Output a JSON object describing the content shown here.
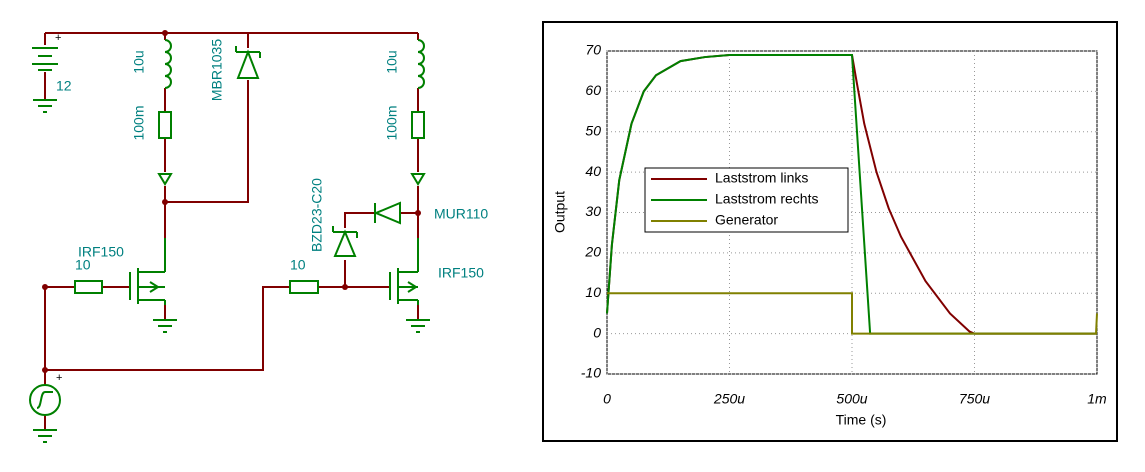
{
  "schematic": {
    "battery_plus": "+",
    "battery": "12",
    "l1": "10u",
    "r1": "100m",
    "d1": "MBR1035",
    "l2": "10u",
    "r2": "100m",
    "z1": "BZD23-C20",
    "d2": "MUR110",
    "m1": "IRF150",
    "m2": "IRF150",
    "rg1": "10",
    "rg2": "10",
    "gen_plus": "+"
  },
  "chart_data": {
    "type": "line",
    "xlabel": "Time (s)",
    "ylabel": "Output",
    "xlim": [
      0,
      0.001
    ],
    "xticks": [
      0,
      {
        "value": 0.00025,
        "label": "250u"
      },
      {
        "value": 0.0005,
        "label": "500u"
      },
      {
        "value": 0.00075,
        "label": "750u"
      },
      {
        "value": 0.001,
        "label": "1m"
      }
    ],
    "ylim": [
      -10,
      70
    ],
    "yticks": [
      -10,
      0,
      10,
      20,
      30,
      40,
      50,
      60,
      70
    ],
    "grid": true,
    "legend": "left",
    "series": [
      {
        "name": "Laststrom links",
        "color": "#800000",
        "x": [
          0,
          1e-05,
          2.5e-05,
          5e-05,
          7.5e-05,
          0.0001,
          0.00015,
          0.0002,
          0.00025,
          0.0005,
          0.00051,
          0.000525,
          0.00055,
          0.000575,
          0.0006,
          0.00065,
          0.0007,
          0.00074,
          0.00075,
          0.001
        ],
        "values": [
          5,
          22,
          38,
          52,
          60,
          64,
          67.5,
          68.5,
          69,
          69,
          62,
          52,
          40,
          31,
          24,
          13,
          5,
          0.5,
          0,
          0
        ]
      },
      {
        "name": "Laststrom rechts",
        "color": "#008000",
        "x": [
          0,
          1e-05,
          2.5e-05,
          5e-05,
          7.5e-05,
          0.0001,
          0.00015,
          0.0002,
          0.00025,
          0.0005,
          0.000537,
          0.001
        ],
        "values": [
          5,
          22,
          38,
          52,
          60,
          64,
          67.5,
          68.5,
          69,
          69,
          0,
          0
        ]
      },
      {
        "name": "Generator",
        "color": "#808000",
        "x": [
          0,
          0.0005,
          0.0005,
          0.000998,
          0.001
        ],
        "values": [
          10,
          10,
          0,
          0,
          5
        ]
      }
    ]
  }
}
